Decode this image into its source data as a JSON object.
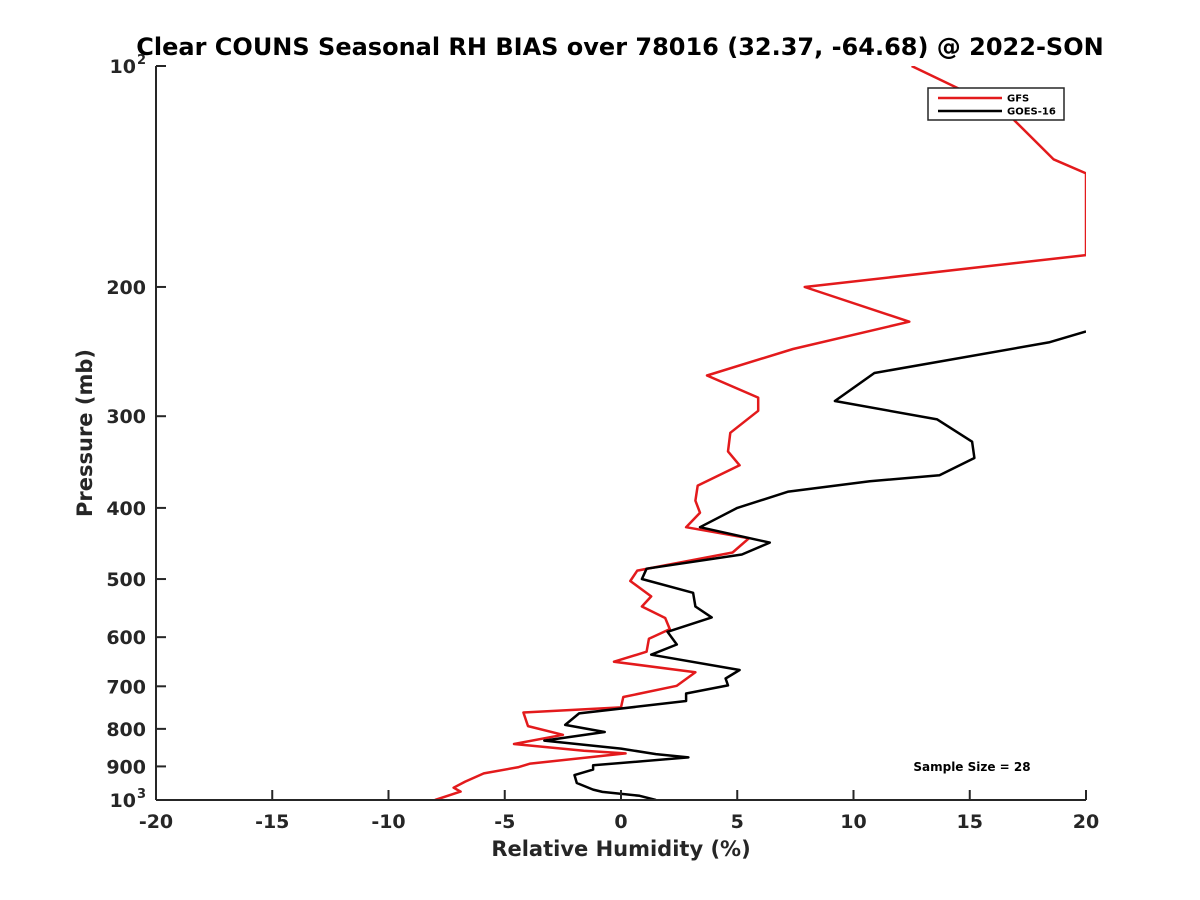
{
  "chart_data": {
    "type": "line",
    "title": "Clear COUNS Seasonal RH BIAS over 78016 (32.37, -64.68) @ 2022-SON",
    "xlabel": "Relative Humidity (%)",
    "ylabel": "Pressure (mb)",
    "xlim": [
      -20,
      20
    ],
    "ylim": [
      100,
      1000
    ],
    "y_scale": "log",
    "y_reversed": true,
    "x_ticks": [
      "-20",
      "-15",
      "-10",
      "-5",
      "0",
      "5",
      "10",
      "15",
      "20"
    ],
    "y_ticks": [
      {
        "value": 100,
        "base": "10",
        "exp": "2"
      },
      {
        "value": 200,
        "base": "200",
        "exp": ""
      },
      {
        "value": 300,
        "base": "300",
        "exp": ""
      },
      {
        "value": 400,
        "base": "400",
        "exp": ""
      },
      {
        "value": 500,
        "base": "500",
        "exp": ""
      },
      {
        "value": 600,
        "base": "600",
        "exp": ""
      },
      {
        "value": 700,
        "base": "700",
        "exp": ""
      },
      {
        "value": 800,
        "base": "800",
        "exp": ""
      },
      {
        "value": 900,
        "base": "900",
        "exp": ""
      },
      {
        "value": 1000,
        "base": "10",
        "exp": "3"
      }
    ],
    "legend_position": "top-right",
    "annotation": "Sample Size = 28",
    "series": [
      {
        "name": "GFS",
        "color": "#e31a1c",
        "points": [
          [
            12.5,
            100
          ],
          [
            16.5,
            115
          ],
          [
            18.6,
            134
          ],
          [
            20.0,
            140
          ],
          [
            20.0,
            181
          ],
          [
            7.9,
            200
          ],
          [
            12.4,
            223
          ],
          [
            7.4,
            243
          ],
          [
            3.7,
            264
          ],
          [
            5.9,
            283
          ],
          [
            5.9,
            295
          ],
          [
            4.7,
            316
          ],
          [
            4.6,
            335
          ],
          [
            5.1,
            350
          ],
          [
            3.3,
            373
          ],
          [
            3.2,
            391
          ],
          [
            3.4,
            406
          ],
          [
            2.8,
            425
          ],
          [
            5.5,
            440
          ],
          [
            4.8,
            460
          ],
          [
            0.7,
            487
          ],
          [
            0.4,
            503
          ],
          [
            1.3,
            528
          ],
          [
            0.9,
            545
          ],
          [
            1.9,
            565
          ],
          [
            2.1,
            585
          ],
          [
            1.2,
            603
          ],
          [
            1.1,
            628
          ],
          [
            -0.3,
            648
          ],
          [
            3.2,
            670
          ],
          [
            2.4,
            699
          ],
          [
            0.1,
            724
          ],
          [
            0.0,
            748
          ],
          [
            -4.2,
            760
          ],
          [
            -4.0,
            793
          ],
          [
            -2.5,
            815
          ],
          [
            -4.6,
            839
          ],
          [
            -1.6,
            857
          ],
          [
            0.2,
            864
          ],
          [
            -3.9,
            892
          ],
          [
            -4.4,
            902
          ],
          [
            -5.9,
            920
          ],
          [
            -6.7,
            944
          ],
          [
            -7.2,
            962
          ],
          [
            -6.9,
            974
          ],
          [
            -8.0,
            1000
          ]
        ]
      },
      {
        "name": "GOES-16",
        "color": "#000000",
        "points": [
          [
            20.0,
            230
          ],
          [
            18.4,
            238
          ],
          [
            10.9,
            262
          ],
          [
            9.2,
            286
          ],
          [
            13.6,
            303
          ],
          [
            15.1,
            325
          ],
          [
            15.2,
            342
          ],
          [
            13.7,
            361
          ],
          [
            10.7,
            368
          ],
          [
            7.2,
            380
          ],
          [
            5.0,
            400
          ],
          [
            3.4,
            425
          ],
          [
            6.4,
            446
          ],
          [
            5.2,
            463
          ],
          [
            1.1,
            484
          ],
          [
            0.9,
            500
          ],
          [
            3.1,
            522
          ],
          [
            3.2,
            545
          ],
          [
            3.9,
            564
          ],
          [
            2.0,
            590
          ],
          [
            2.4,
            614
          ],
          [
            1.3,
            634
          ],
          [
            5.1,
            665
          ],
          [
            4.5,
            683
          ],
          [
            4.6,
            698
          ],
          [
            2.8,
            716
          ],
          [
            2.8,
            733
          ],
          [
            -1.8,
            762
          ],
          [
            -2.4,
            790
          ],
          [
            -0.7,
            808
          ],
          [
            -3.3,
            830
          ],
          [
            0.0,
            851
          ],
          [
            1.5,
            866
          ],
          [
            2.9,
            875
          ],
          [
            -1.2,
            897
          ],
          [
            -1.2,
            909
          ],
          [
            -2.0,
            925
          ],
          [
            -1.9,
            948
          ],
          [
            -1.2,
            968
          ],
          [
            -0.8,
            975
          ],
          [
            0.8,
            987
          ],
          [
            1.5,
            1000
          ]
        ]
      }
    ]
  }
}
